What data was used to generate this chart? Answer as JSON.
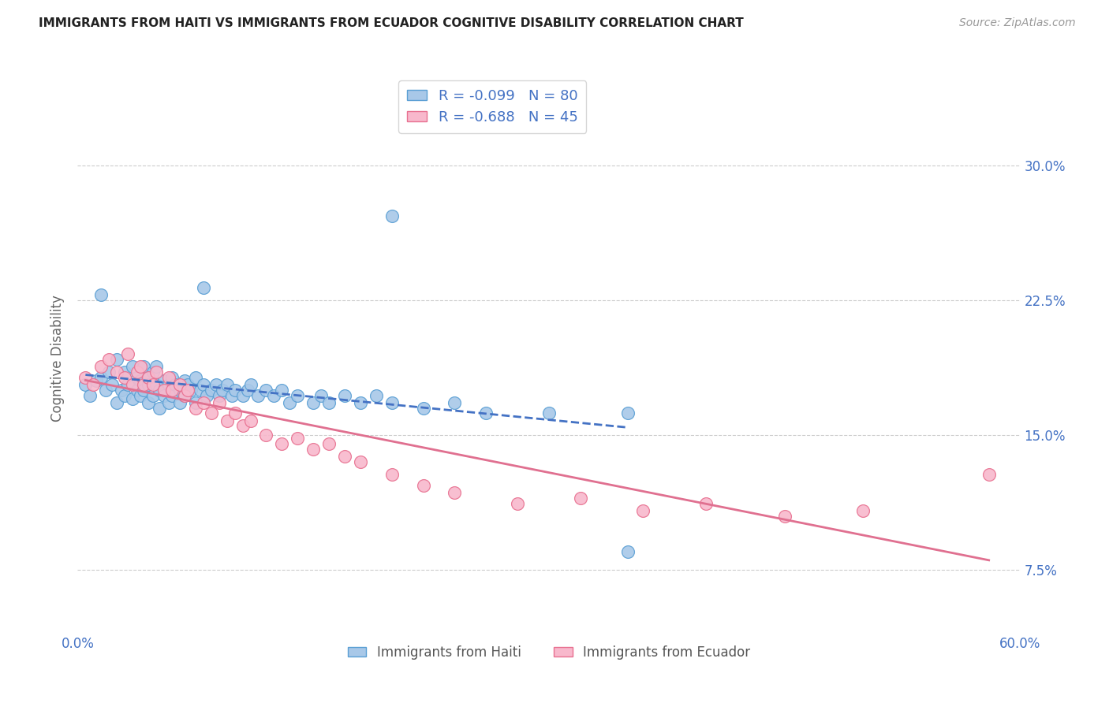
{
  "title": "IMMIGRANTS FROM HAITI VS IMMIGRANTS FROM ECUADOR COGNITIVE DISABILITY CORRELATION CHART",
  "source": "Source: ZipAtlas.com",
  "ylabel": "Cognitive Disability",
  "ytick_labels": [
    "7.5%",
    "15.0%",
    "22.5%",
    "30.0%"
  ],
  "ytick_values": [
    0.075,
    0.15,
    0.225,
    0.3
  ],
  "xlim": [
    0.0,
    0.6
  ],
  "ylim": [
    0.04,
    0.345
  ],
  "R_haiti": -0.099,
  "N_haiti": 80,
  "R_ecuador": -0.688,
  "N_ecuador": 45,
  "color_haiti_fill": "#a8c8e8",
  "color_haiti_edge": "#5a9fd4",
  "color_ecuador_fill": "#f8b8cc",
  "color_ecuador_edge": "#e87090",
  "color_trendline_haiti": "#4472c4",
  "color_trendline_ecuador": "#e07090",
  "color_axis_labels": "#4472c4",
  "background_color": "#ffffff",
  "haiti_x": [
    0.005,
    0.008,
    0.012,
    0.015,
    0.018,
    0.02,
    0.022,
    0.025,
    0.025,
    0.028,
    0.03,
    0.03,
    0.032,
    0.035,
    0.035,
    0.038,
    0.038,
    0.04,
    0.04,
    0.042,
    0.042,
    0.045,
    0.045,
    0.045,
    0.048,
    0.048,
    0.05,
    0.05,
    0.052,
    0.052,
    0.055,
    0.055,
    0.058,
    0.058,
    0.06,
    0.06,
    0.062,
    0.065,
    0.065,
    0.068,
    0.068,
    0.07,
    0.072,
    0.075,
    0.075,
    0.078,
    0.08,
    0.082,
    0.085,
    0.088,
    0.09,
    0.092,
    0.095,
    0.098,
    0.1,
    0.105,
    0.108,
    0.11,
    0.115,
    0.12,
    0.125,
    0.13,
    0.135,
    0.14,
    0.15,
    0.155,
    0.16,
    0.17,
    0.18,
    0.19,
    0.2,
    0.22,
    0.24,
    0.26,
    0.3,
    0.35,
    0.015,
    0.08,
    0.2,
    0.35
  ],
  "haiti_y": [
    0.178,
    0.172,
    0.18,
    0.182,
    0.175,
    0.185,
    0.178,
    0.192,
    0.168,
    0.175,
    0.185,
    0.172,
    0.178,
    0.188,
    0.17,
    0.182,
    0.175,
    0.18,
    0.172,
    0.188,
    0.175,
    0.182,
    0.178,
    0.168,
    0.185,
    0.172,
    0.178,
    0.188,
    0.175,
    0.165,
    0.18,
    0.172,
    0.178,
    0.168,
    0.182,
    0.172,
    0.178,
    0.175,
    0.168,
    0.18,
    0.172,
    0.178,
    0.175,
    0.182,
    0.168,
    0.175,
    0.178,
    0.172,
    0.175,
    0.178,
    0.172,
    0.175,
    0.178,
    0.172,
    0.175,
    0.172,
    0.175,
    0.178,
    0.172,
    0.175,
    0.172,
    0.175,
    0.168,
    0.172,
    0.168,
    0.172,
    0.168,
    0.172,
    0.168,
    0.172,
    0.168,
    0.165,
    0.168,
    0.162,
    0.162,
    0.162,
    0.228,
    0.232,
    0.272,
    0.085
  ],
  "ecuador_x": [
    0.005,
    0.01,
    0.015,
    0.02,
    0.025,
    0.03,
    0.032,
    0.035,
    0.038,
    0.04,
    0.042,
    0.045,
    0.048,
    0.05,
    0.055,
    0.058,
    0.06,
    0.065,
    0.068,
    0.07,
    0.075,
    0.08,
    0.085,
    0.09,
    0.095,
    0.1,
    0.105,
    0.11,
    0.12,
    0.13,
    0.14,
    0.15,
    0.16,
    0.17,
    0.18,
    0.2,
    0.22,
    0.24,
    0.28,
    0.32,
    0.36,
    0.4,
    0.45,
    0.5,
    0.58
  ],
  "ecuador_y": [
    0.182,
    0.178,
    0.188,
    0.192,
    0.185,
    0.182,
    0.195,
    0.178,
    0.185,
    0.188,
    0.178,
    0.182,
    0.178,
    0.185,
    0.175,
    0.182,
    0.175,
    0.178,
    0.172,
    0.175,
    0.165,
    0.168,
    0.162,
    0.168,
    0.158,
    0.162,
    0.155,
    0.158,
    0.15,
    0.145,
    0.148,
    0.142,
    0.145,
    0.138,
    0.135,
    0.128,
    0.122,
    0.118,
    0.112,
    0.115,
    0.108,
    0.112,
    0.105,
    0.108,
    0.128
  ]
}
